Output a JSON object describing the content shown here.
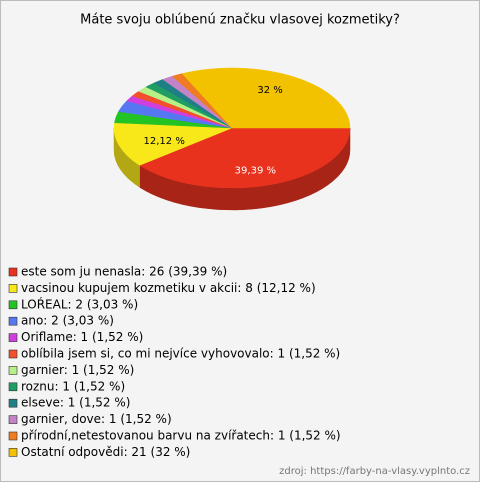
{
  "chart_data": {
    "type": "pie3d",
    "title": "Máte svoju oblúbenú značku vlasovej kozmetiky?",
    "categories": [
      "este som ju nenasla: 26 (39,39 %)",
      "vacsinou kupujem kozmetiku v akcii: 8 (12,12 %)",
      "LOŔEAL: 2 (3,03 %)",
      "ano: 2 (3,03 %)",
      "Oriflame: 1 (1,52 %)",
      "oblíbila jsem si, co mi nejvíce vyhovovalo: 1 (1,52 %)",
      "garnier: 1 (1,52 %)",
      "roznu: 1 (1,52 %)",
      "elseve: 1 (1,52 %)",
      "garnier, dove: 1 (1,52 %)",
      "přírodní,netestovanou barvu na zvířatech: 1 (1,52 %)",
      "Ostatní odpovědi: 21 (32 %)"
    ],
    "values": [
      39.39,
      12.12,
      3.03,
      3.03,
      1.52,
      1.52,
      1.52,
      1.52,
      1.52,
      1.52,
      1.52,
      32
    ],
    "value_labels": [
      "39,39 %",
      "12,12 %",
      null,
      null,
      null,
      null,
      null,
      null,
      null,
      null,
      null,
      "32 %"
    ],
    "colors": [
      "#e8321e",
      "#f8e81a",
      "#22c322",
      "#5577f2",
      "#cf3fe0",
      "#f2502a",
      "#b8f088",
      "#1e9e62",
      "#1f7f86",
      "#c482c8",
      "#f07c22",
      "#f2c200"
    ],
    "source": "zdroj: https://farby-na-vlasy.vyplnto.cz"
  }
}
